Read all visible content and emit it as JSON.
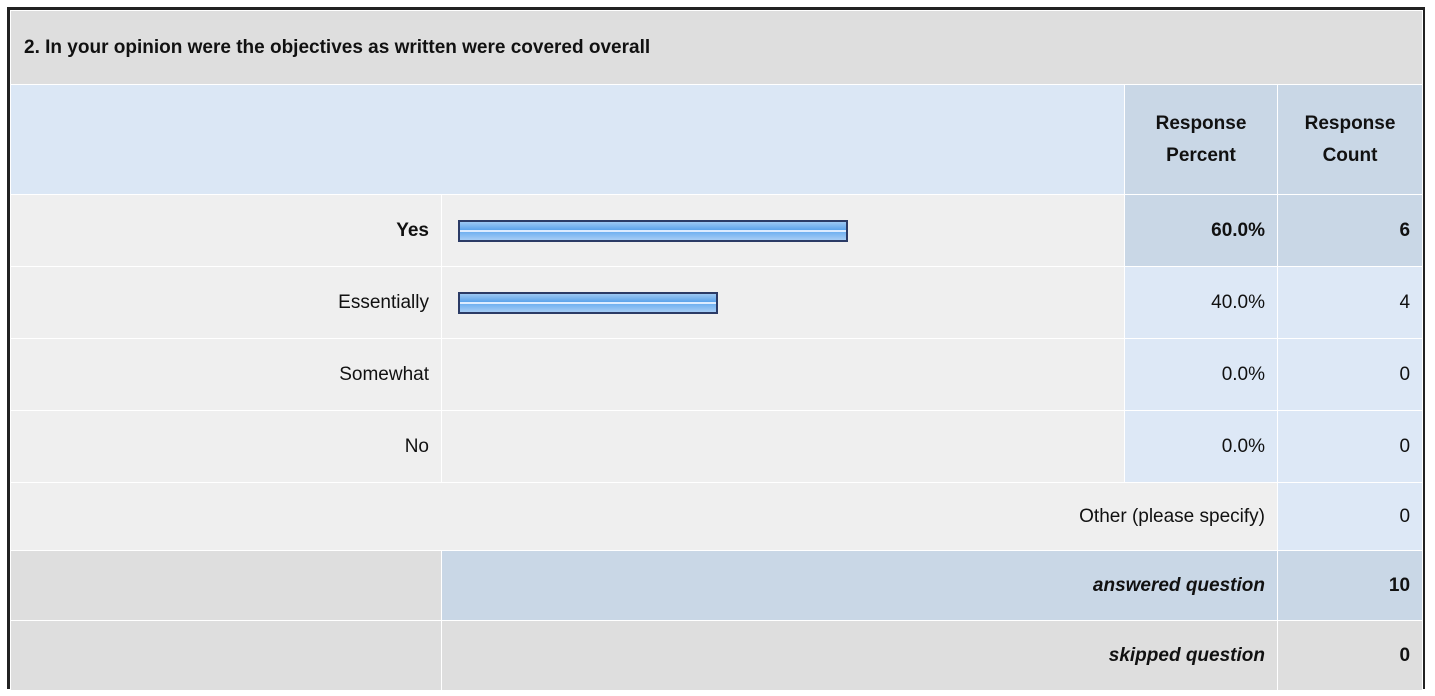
{
  "question": {
    "title": "2. In your opinion were the objectives as written were covered overall"
  },
  "header": {
    "percent": "Response Percent",
    "count": "Response Count"
  },
  "answers": [
    {
      "label": "Yes",
      "percent": "60.0%",
      "count": "6",
      "fraction": 0.6,
      "highlighted": true
    },
    {
      "label": "Essentially",
      "percent": "40.0%",
      "count": "4",
      "fraction": 0.4,
      "highlighted": false
    },
    {
      "label": "Somewhat",
      "percent": "0.0%",
      "count": "0",
      "fraction": 0.0,
      "highlighted": false
    },
    {
      "label": "No",
      "percent": "0.0%",
      "count": "0",
      "fraction": 0.0,
      "highlighted": false
    }
  ],
  "other": {
    "label": "Other (please specify)",
    "count": "0"
  },
  "summary": {
    "answered_label": "answered question",
    "answered_count": "10",
    "skipped_label": "skipped question",
    "skipped_count": "0"
  },
  "colors": {
    "bar_border": "#2b3b66",
    "bar_fill": "#5aa2ea",
    "header_bg": "#dbe7f5",
    "title_bg": "#dedede"
  }
}
